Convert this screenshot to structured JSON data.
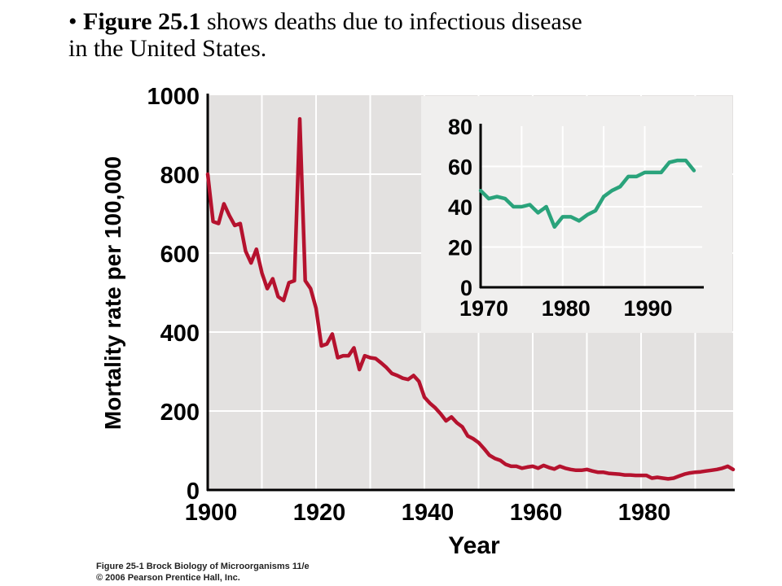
{
  "slide": {
    "bullet": "•",
    "headline_bold": "Figure 25.1",
    "headline_line1_rest": " shows deaths due to infectious disease",
    "headline_line2": "in the United States.",
    "credit_line1": "Figure 25-1  Brock Biology of Microorganisms 11/e",
    "credit_line2": "© 2006 Pearson Prentice Hall, Inc."
  },
  "colors": {
    "main_line": "#b5122e",
    "inset_line": "#2aa37b",
    "plot_background": "#e3e1e0",
    "inset_background": "#f0efee",
    "grid": "#ffffff",
    "axis": "#000000"
  },
  "chart_data": [
    {
      "type": "line",
      "xlabel": "Year",
      "ylabel": "Mortality rate per 100,000",
      "xlim": [
        1900,
        1997
      ],
      "ylim": [
        0,
        1000
      ],
      "xticks": [
        "1900",
        "1920",
        "1940",
        "1960",
        "1980"
      ],
      "yticks": [
        "0",
        "200",
        "400",
        "600",
        "800",
        "1000"
      ],
      "grid": true,
      "x": [
        1900,
        1901,
        1902,
        1903,
        1904,
        1905,
        1906,
        1907,
        1908,
        1909,
        1910,
        1911,
        1912,
        1913,
        1914,
        1915,
        1916,
        1917,
        1918,
        1919,
        1920,
        1921,
        1922,
        1923,
        1924,
        1925,
        1926,
        1927,
        1928,
        1929,
        1930,
        1931,
        1932,
        1933,
        1934,
        1935,
        1936,
        1937,
        1938,
        1939,
        1940,
        1941,
        1942,
        1943,
        1944,
        1945,
        1946,
        1947,
        1948,
        1949,
        1950,
        1951,
        1952,
        1953,
        1954,
        1955,
        1956,
        1957,
        1958,
        1959,
        1960,
        1961,
        1962,
        1963,
        1964,
        1965,
        1966,
        1967,
        1968,
        1969,
        1970,
        1971,
        1972,
        1973,
        1974,
        1975,
        1976,
        1977,
        1978,
        1979,
        1980,
        1981,
        1982,
        1983,
        1984,
        1985,
        1986,
        1987,
        1988,
        1989,
        1990,
        1991,
        1992,
        1993,
        1994,
        1995,
        1996,
        1997
      ],
      "y": [
        800,
        680,
        675,
        725,
        695,
        670,
        675,
        605,
        575,
        610,
        550,
        510,
        535,
        490,
        480,
        525,
        530,
        940,
        530,
        510,
        460,
        365,
        370,
        395,
        335,
        340,
        340,
        360,
        305,
        340,
        335,
        333,
        322,
        310,
        295,
        290,
        283,
        280,
        290,
        275,
        235,
        220,
        208,
        193,
        175,
        185,
        170,
        160,
        137,
        130,
        120,
        105,
        88,
        80,
        75,
        65,
        60,
        60,
        55,
        58,
        60,
        55,
        62,
        57,
        53,
        60,
        55,
        52,
        50,
        50,
        52,
        48,
        45,
        45,
        42,
        41,
        40,
        38,
        38,
        37,
        37,
        37,
        30,
        32,
        30,
        28,
        30,
        35,
        40,
        43,
        45,
        46,
        48,
        50,
        52,
        55,
        60,
        52
      ]
    },
    {
      "type": "line",
      "xlim": [
        1970,
        1997
      ],
      "ylim": [
        0,
        80
      ],
      "xticks": [
        "1970",
        "1980",
        "1990"
      ],
      "yticks": [
        "0",
        "20",
        "40",
        "60",
        "80"
      ],
      "grid": true,
      "x": [
        1970,
        1971,
        1972,
        1973,
        1974,
        1975,
        1976,
        1977,
        1978,
        1979,
        1980,
        1981,
        1982,
        1983,
        1984,
        1985,
        1986,
        1987,
        1988,
        1989,
        1990,
        1991,
        1992,
        1993,
        1994,
        1995,
        1996
      ],
      "y": [
        48,
        44,
        45,
        44,
        40,
        40,
        41,
        37,
        40,
        30,
        35,
        35,
        33,
        36,
        38,
        45,
        48,
        50,
        55,
        55,
        57,
        57,
        57,
        62,
        63,
        63,
        58
      ]
    }
  ]
}
